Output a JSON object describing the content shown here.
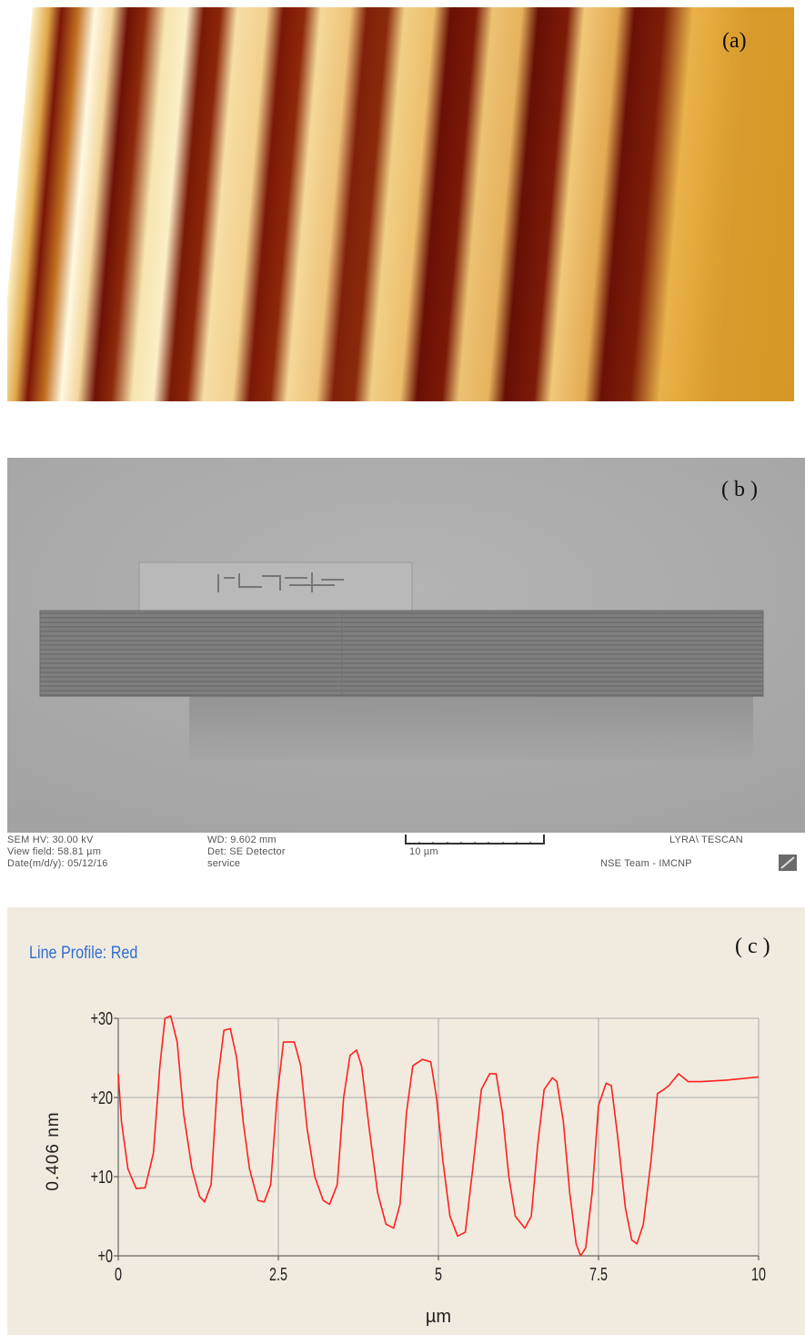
{
  "panels": {
    "a": {
      "label": "(a)"
    },
    "b": {
      "label": "( b )"
    },
    "c": {
      "label": "( c )"
    }
  },
  "sem_info": {
    "line1_a": "SEM HV: 30.00 kV",
    "line1_b": "WD: 9.602 mm",
    "line1_c": "LYRA\\ TESCAN",
    "line2_a": "View field: 58.81 µm",
    "line2_b": "Det: SE Detector",
    "line2_c": "10 µm",
    "line3_a": "Date(m/d/y): 05/12/16",
    "line3_b": "service",
    "line3_c": "NSE Team - IMCNP"
  },
  "chart_data": {
    "type": "line",
    "title": "Line Profile: Red",
    "xlabel": "µm",
    "ylabel": "0.406 nm",
    "xlim": [
      0,
      10
    ],
    "ylim": [
      0,
      30
    ],
    "x_ticks": [
      "0",
      "2.5",
      "5",
      "7.5",
      "10"
    ],
    "y_ticks": [
      "+0",
      "+10",
      "+20",
      "+30"
    ],
    "grid": true,
    "series": [
      {
        "color": "#ff2020",
        "points": [
          [
            0,
            23
          ],
          [
            0.05,
            17
          ],
          [
            0.15,
            11
          ],
          [
            0.28,
            8.5
          ],
          [
            0.42,
            8.6
          ],
          [
            0.55,
            13
          ],
          [
            0.65,
            24
          ],
          [
            0.73,
            30
          ],
          [
            0.82,
            30.3
          ],
          [
            0.92,
            27
          ],
          [
            1.02,
            18
          ],
          [
            1.15,
            11
          ],
          [
            1.27,
            7.5
          ],
          [
            1.35,
            6.8
          ],
          [
            1.45,
            9
          ],
          [
            1.55,
            22
          ],
          [
            1.65,
            28.5
          ],
          [
            1.75,
            28.7
          ],
          [
            1.85,
            25
          ],
          [
            1.95,
            17
          ],
          [
            2.05,
            11
          ],
          [
            2.18,
            7
          ],
          [
            2.28,
            6.8
          ],
          [
            2.38,
            9
          ],
          [
            2.48,
            20
          ],
          [
            2.58,
            27
          ],
          [
            2.75,
            27
          ],
          [
            2.85,
            24
          ],
          [
            2.95,
            16
          ],
          [
            3.07,
            10
          ],
          [
            3.2,
            7
          ],
          [
            3.3,
            6.5
          ],
          [
            3.42,
            9
          ],
          [
            3.52,
            20
          ],
          [
            3.62,
            25.3
          ],
          [
            3.72,
            26
          ],
          [
            3.8,
            24
          ],
          [
            3.92,
            16
          ],
          [
            4.05,
            8
          ],
          [
            4.18,
            4
          ],
          [
            4.3,
            3.5
          ],
          [
            4.4,
            6.5
          ],
          [
            4.5,
            18
          ],
          [
            4.6,
            24
          ],
          [
            4.75,
            24.8
          ],
          [
            4.88,
            24.5
          ],
          [
            4.97,
            20
          ],
          [
            5.07,
            12
          ],
          [
            5.18,
            5
          ],
          [
            5.3,
            2.5
          ],
          [
            5.42,
            3
          ],
          [
            5.55,
            12
          ],
          [
            5.67,
            21
          ],
          [
            5.8,
            23
          ],
          [
            5.9,
            23
          ],
          [
            6.0,
            18
          ],
          [
            6.1,
            10
          ],
          [
            6.2,
            5
          ],
          [
            6.35,
            3.5
          ],
          [
            6.45,
            5
          ],
          [
            6.55,
            14
          ],
          [
            6.65,
            21
          ],
          [
            6.78,
            22.5
          ],
          [
            6.85,
            22
          ],
          [
            6.95,
            17
          ],
          [
            7.05,
            8
          ],
          [
            7.15,
            1.5
          ],
          [
            7.22,
            0
          ],
          [
            7.3,
            1
          ],
          [
            7.4,
            8
          ],
          [
            7.5,
            19
          ],
          [
            7.62,
            21.8
          ],
          [
            7.7,
            21.5
          ],
          [
            7.8,
            15
          ],
          [
            7.92,
            6
          ],
          [
            8.02,
            2
          ],
          [
            8.1,
            1.5
          ],
          [
            8.2,
            4
          ],
          [
            8.32,
            12
          ],
          [
            8.42,
            20.5
          ],
          [
            8.52,
            21
          ],
          [
            8.6,
            21.5
          ],
          [
            8.75,
            23
          ],
          [
            8.9,
            22
          ],
          [
            9.1,
            22
          ],
          [
            9.5,
            22.2
          ],
          [
            10,
            22.6
          ]
        ]
      }
    ]
  }
}
